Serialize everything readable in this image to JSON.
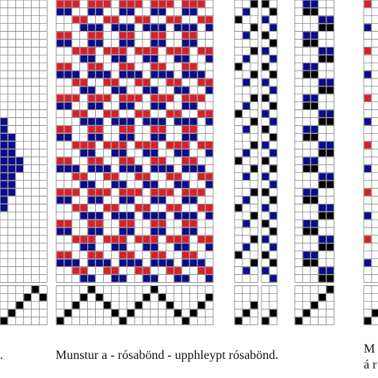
{
  "colors": {
    "grid_line": "#777777",
    "red": "#d4222a",
    "blue": "#0a0c88",
    "black": "#000000",
    "white": "#ffffff"
  },
  "captions": {
    "left": ".",
    "main": "Munstur a - rósabönd - upphleypt rósabönd.",
    "right_line_1": "M",
    "right_line_2": "á r"
  },
  "chart_data": {
    "type": "heatmap",
    "title": "",
    "legend": [],
    "colors_used": [
      "red",
      "blue",
      "black",
      "white"
    ]
  }
}
